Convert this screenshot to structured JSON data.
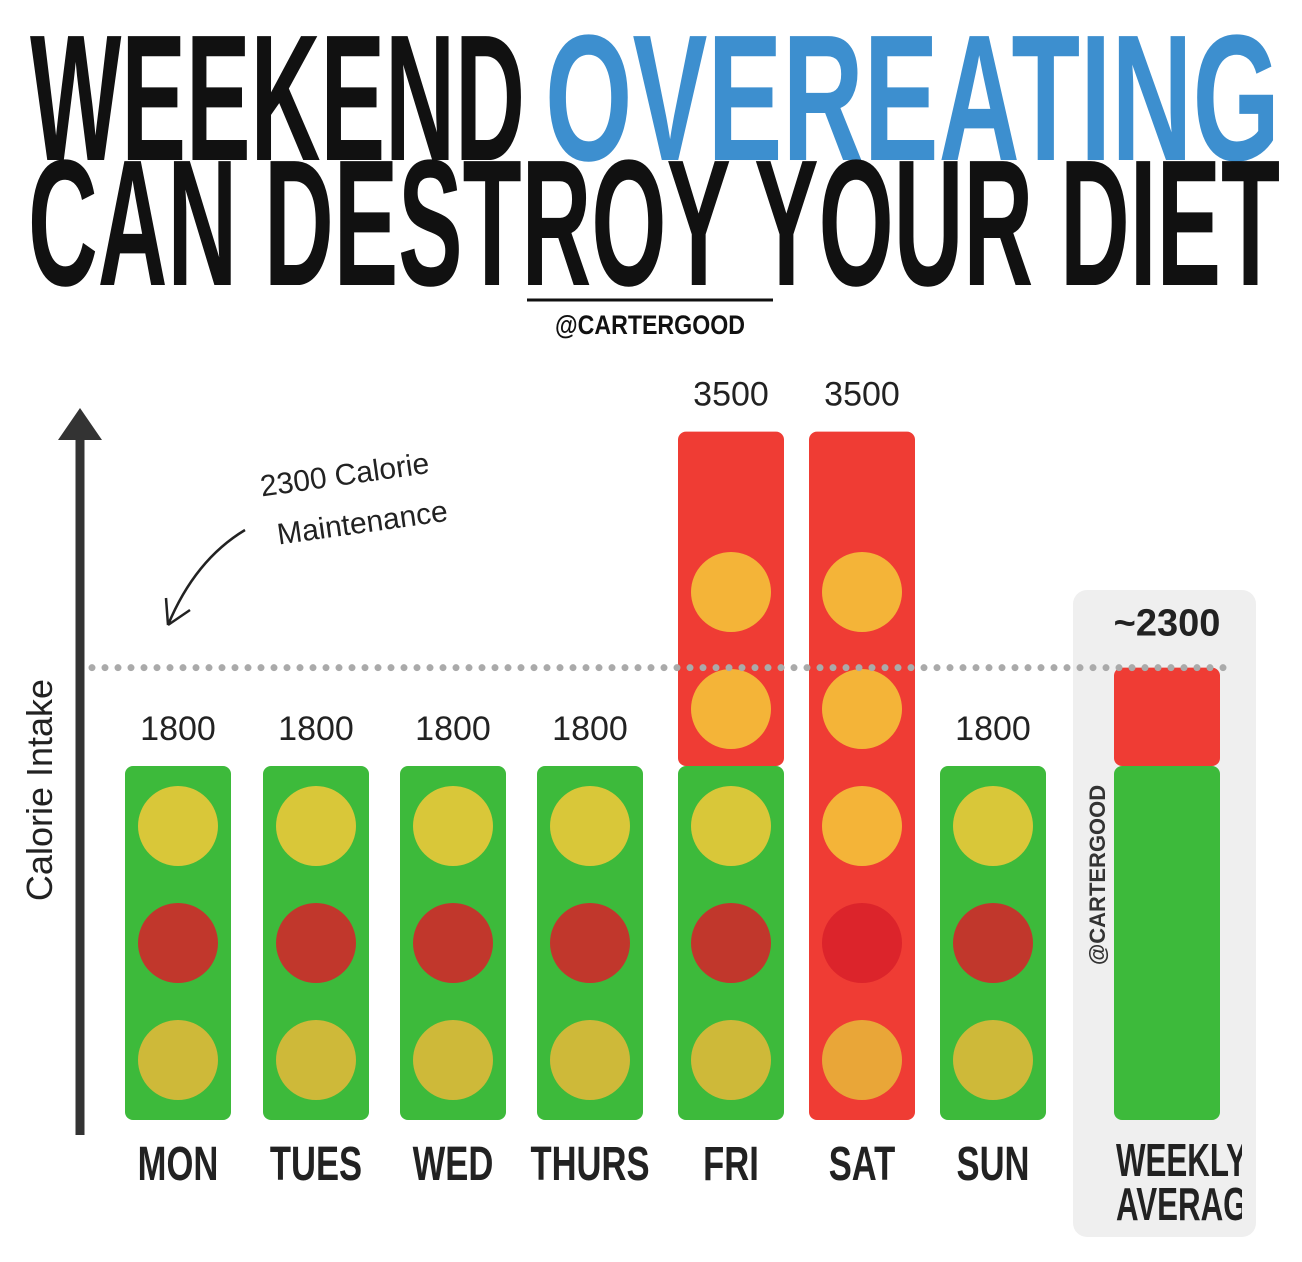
{
  "chart_data": {
    "type": "bar",
    "title": {
      "line1": "WEEKEND",
      "highlight": "OVEREATING",
      "line2": "CAN DESTROY YOUR DIET",
      "highlight_color": "#3d8fcf"
    },
    "credit": "@CARTERGOOD",
    "y_label": "Calorie Intake",
    "annotation": [
      "2300 Calorie",
      "Maintenance"
    ],
    "reference_line": 2300,
    "categories": [
      "MON",
      "TUES",
      "WED",
      "THURS",
      "FRI",
      "SAT",
      "SUN",
      "WEEKLY AVERAGE"
    ],
    "values": [
      1800,
      1800,
      1800,
      1800,
      3500,
      3500,
      1800,
      2300
    ],
    "value_labels": [
      "1800",
      "1800",
      "1800",
      "1800",
      "3500",
      "3500",
      "1800",
      "~2300"
    ],
    "series": [
      {
        "color": "#3dba3b",
        "values": [
          1800,
          1800,
          1800,
          1800,
          1800,
          0,
          1800,
          1800
        ]
      },
      {
        "color": "#ef3c34",
        "values": [
          0,
          0,
          0,
          0,
          1700,
          3500,
          0,
          500
        ]
      }
    ],
    "ylim": [
      0,
      3600
    ],
    "bar_watermark": "@CARTERGOOD"
  }
}
